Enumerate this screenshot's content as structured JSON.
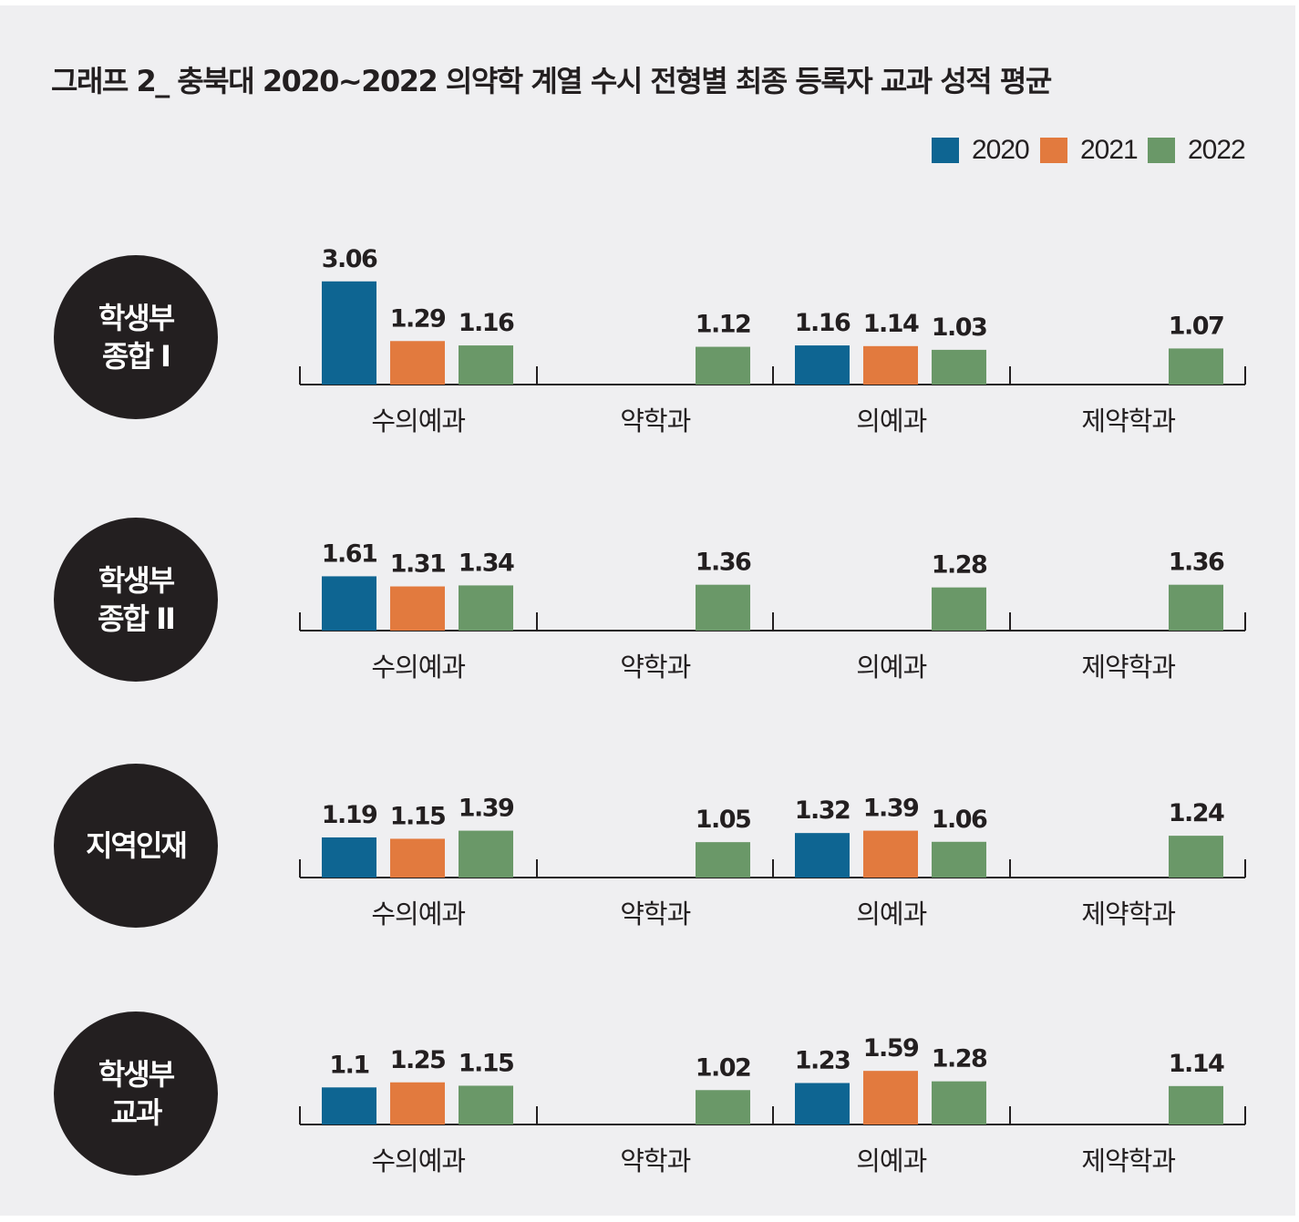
{
  "title": "그래프 2_ 충북대 2020~2022 의약학 계열 수시 전형별 최종 등록자 교과 성적 평균",
  "legend": [
    {
      "label": "2020",
      "color": "#0e6592"
    },
    {
      "label": "2021",
      "color": "#e27a3e"
    },
    {
      "label": "2022",
      "color": "#6a9868"
    }
  ],
  "chart_data": [
    {
      "type": "bar",
      "group_label": "학생부\n종합 I",
      "categories": [
        "수의예과",
        "약학과",
        "의예과",
        "제약학과"
      ],
      "series": [
        {
          "name": "2020",
          "values": [
            3.06,
            null,
            1.16,
            null
          ]
        },
        {
          "name": "2021",
          "values": [
            1.29,
            null,
            1.14,
            null
          ]
        },
        {
          "name": "2022",
          "values": [
            1.16,
            1.12,
            1.03,
            1.07
          ]
        }
      ]
    },
    {
      "type": "bar",
      "group_label": "학생부\n종합 II",
      "categories": [
        "수의예과",
        "약학과",
        "의예과",
        "제약학과"
      ],
      "series": [
        {
          "name": "2020",
          "values": [
            1.61,
            null,
            null,
            null
          ]
        },
        {
          "name": "2021",
          "values": [
            1.31,
            null,
            null,
            null
          ]
        },
        {
          "name": "2022",
          "values": [
            1.34,
            1.36,
            1.28,
            1.36
          ]
        }
      ]
    },
    {
      "type": "bar",
      "group_label": "지역인재",
      "categories": [
        "수의예과",
        "약학과",
        "의예과",
        "제약학과"
      ],
      "series": [
        {
          "name": "2020",
          "values": [
            1.19,
            null,
            1.32,
            null
          ]
        },
        {
          "name": "2021",
          "values": [
            1.15,
            null,
            1.39,
            null
          ]
        },
        {
          "name": "2022",
          "values": [
            1.39,
            1.05,
            1.06,
            1.24
          ]
        }
      ]
    },
    {
      "type": "bar",
      "group_label": "학생부\n교과",
      "categories": [
        "수의예과",
        "약학과",
        "의예과",
        "제약학과"
      ],
      "series": [
        {
          "name": "2020",
          "values": [
            1.1,
            null,
            1.23,
            null
          ]
        },
        {
          "name": "2021",
          "values": [
            1.25,
            null,
            1.59,
            null
          ]
        },
        {
          "name": "2022",
          "values": [
            1.15,
            1.02,
            1.28,
            1.14
          ]
        }
      ]
    }
  ]
}
